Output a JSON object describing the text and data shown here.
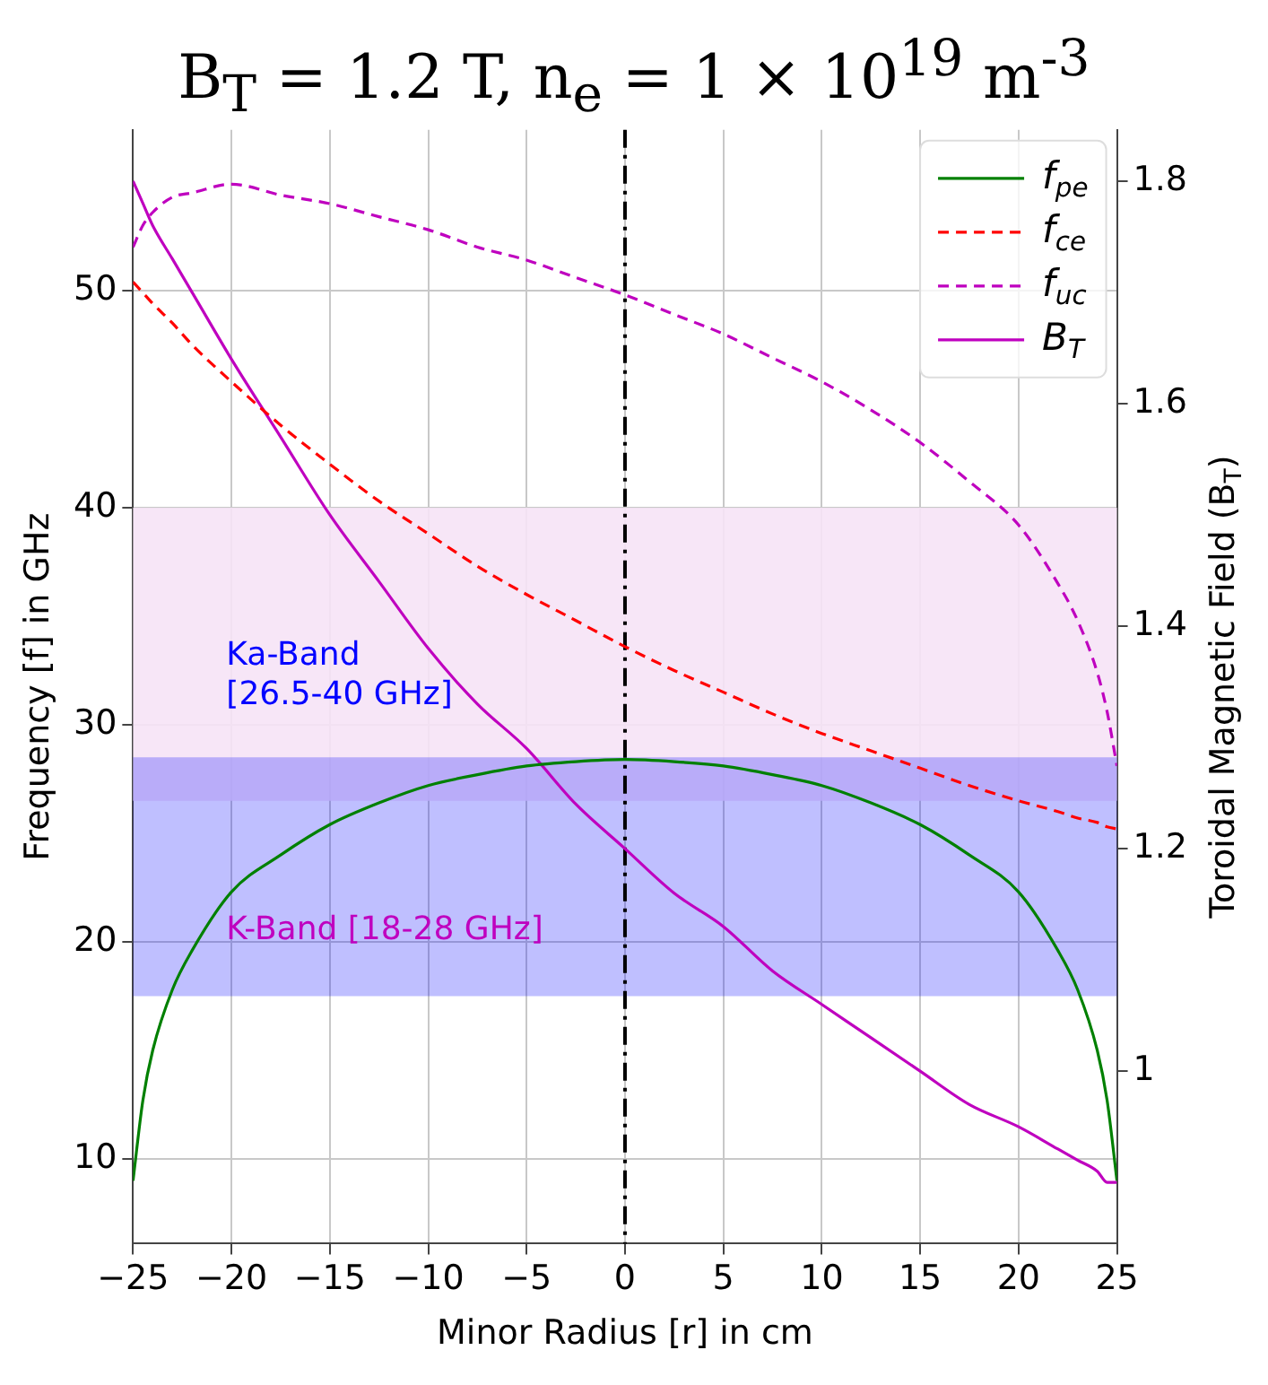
{
  "chart_data": {
    "type": "line",
    "title": "B$_{T}$ = 1.2 T, n$_{e}$ = 1 × 10$^{19}$ m$^{-3}$",
    "xlabel": "Minor Radius [r] in cm",
    "ylabel": "Frequency [f] in GHz",
    "y2label": "Toroidal Magnetic Field (B$_{T}$)",
    "x": [
      -25,
      -24.5,
      -24,
      -23,
      -22,
      -20,
      -17.5,
      -15,
      -12.5,
      -10,
      -7.5,
      -5,
      -2.5,
      0,
      2.5,
      5,
      7.5,
      10,
      12.5,
      15,
      17.5,
      20,
      22,
      23,
      24,
      24.5,
      25
    ],
    "series": [
      {
        "name": "f$_{pe}$",
        "color": "#008000",
        "line_style": "solid",
        "values": [
          9,
          12.7,
          15.0,
          17.8,
          19.6,
          22.3,
          24.0,
          25.4,
          26.4,
          27.2,
          27.7,
          28.1,
          28.3,
          28.4,
          28.3,
          28.1,
          27.7,
          27.2,
          26.4,
          25.4,
          24.0,
          22.3,
          19.6,
          17.8,
          15.0,
          12.7,
          9
        ]
      },
      {
        "name": "f$_{ce}$",
        "color": "#ff0000",
        "line_style": "dashed",
        "values": [
          50.4,
          49.9,
          49.4,
          48.5,
          47.5,
          45.8,
          43.8,
          42.0,
          40.3,
          38.8,
          37.3,
          36.0,
          34.8,
          33.6,
          32.5,
          31.5,
          30.5,
          29.6,
          28.8,
          28.0,
          27.2,
          26.5,
          26.0,
          25.7,
          25.5,
          25.3,
          25.2
        ]
      },
      {
        "name": "f$_{uc}$",
        "color": "#bf00bf",
        "line_style": "dashed",
        "values": [
          52.0,
          53.0,
          53.6,
          54.3,
          54.5,
          54.9,
          54.4,
          54.0,
          53.4,
          52.8,
          52.0,
          51.4,
          50.6,
          49.8,
          48.9,
          48.0,
          46.9,
          45.8,
          44.5,
          43.0,
          41.2,
          39.2,
          36.5,
          34.8,
          32.4,
          30.6,
          28.1
        ]
      },
      {
        "name": "B$_{T}$",
        "color": "#bf00bf",
        "line_style": "solid",
        "axis": "y2",
        "values": [
          1.8,
          1.78,
          1.76,
          1.73,
          1.7,
          1.64,
          1.57,
          1.5,
          1.44,
          1.38,
          1.33,
          1.29,
          1.24,
          1.2,
          1.16,
          1.13,
          1.09,
          1.06,
          1.03,
          1.0,
          0.97,
          0.95,
          0.93,
          0.92,
          0.91,
          0.9,
          0.9
        ]
      }
    ],
    "xlim": [
      -25,
      25
    ],
    "xticks": [
      -25,
      -20,
      -15,
      -10,
      -5,
      0,
      5,
      10,
      15,
      20,
      25
    ],
    "ylim": [
      6.1,
      57.4
    ],
    "yticks": [
      10,
      20,
      30,
      40,
      50
    ],
    "y2lim": [
      0.845,
      1.846
    ],
    "y2ticks": [
      1.0,
      1.2,
      1.4,
      1.6,
      1.8
    ],
    "ref_lines": [
      {
        "axis": "x",
        "value": 0,
        "color": "#000000",
        "line_style": "dashdot"
      }
    ],
    "bands": [
      {
        "axis": "y",
        "from": 26.5,
        "to": 40,
        "label": "Ka-Band\n[26.5-40 GHz]",
        "color": "#f6e3f6"
      },
      {
        "axis": "y",
        "from": 17.5,
        "to": 28.5,
        "label": "K-Band [18-28 GHz]",
        "color": "#0000ff"
      }
    ],
    "grid": true,
    "legend": "top right"
  }
}
